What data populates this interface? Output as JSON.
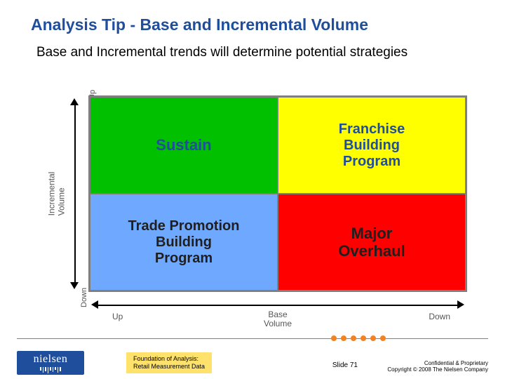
{
  "title": "Analysis Tip - Base and Incremental Volume",
  "title_color": "#1f4e9c",
  "subtitle": "Base and Incremental trends will determine potential strategies",
  "matrix": {
    "type": "2x2-quadrant",
    "border_color": "#7f7f7f",
    "y_axis": {
      "label": "Incremental\nVolume",
      "up_label": "Up",
      "down_label": "Down",
      "axis_color": "#000000",
      "label_color": "#555555"
    },
    "x_axis": {
      "label": "Base\nVolume",
      "left_label": "Up",
      "right_label": "Down",
      "axis_color": "#000000",
      "label_color": "#555555"
    },
    "quadrants": {
      "top_left": {
        "label": "Sustain",
        "bg": "#00c000",
        "text_color": "#1f4e9c"
      },
      "top_right": {
        "label": "Franchise\nBuilding\nProgram",
        "bg": "#ffff00",
        "text_color": "#1f4e9c"
      },
      "bottom_left": {
        "label": "Trade Promotion\nBuilding\nProgram",
        "bg": "#6fa8ff",
        "text_color": "#1f1f1f"
      },
      "bottom_right": {
        "label": "Major\nOverhaul",
        "bg": "#ff0000",
        "text_color": "#1f1f1f"
      }
    }
  },
  "footer": {
    "dot_color": "#f58220",
    "dot_count": 6,
    "logo_bg": "#1f4e9c",
    "logo_text": "nielsen",
    "mid_bg": "#ffe26b",
    "mid_line1": "Foundation of Analysis:",
    "mid_line2": "Retail Measurement Data",
    "slide_label": "Slide 71",
    "conf_line1": "Confidential & Proprietary",
    "conf_line2": "Copyright © 2008 The Nielsen Company"
  }
}
